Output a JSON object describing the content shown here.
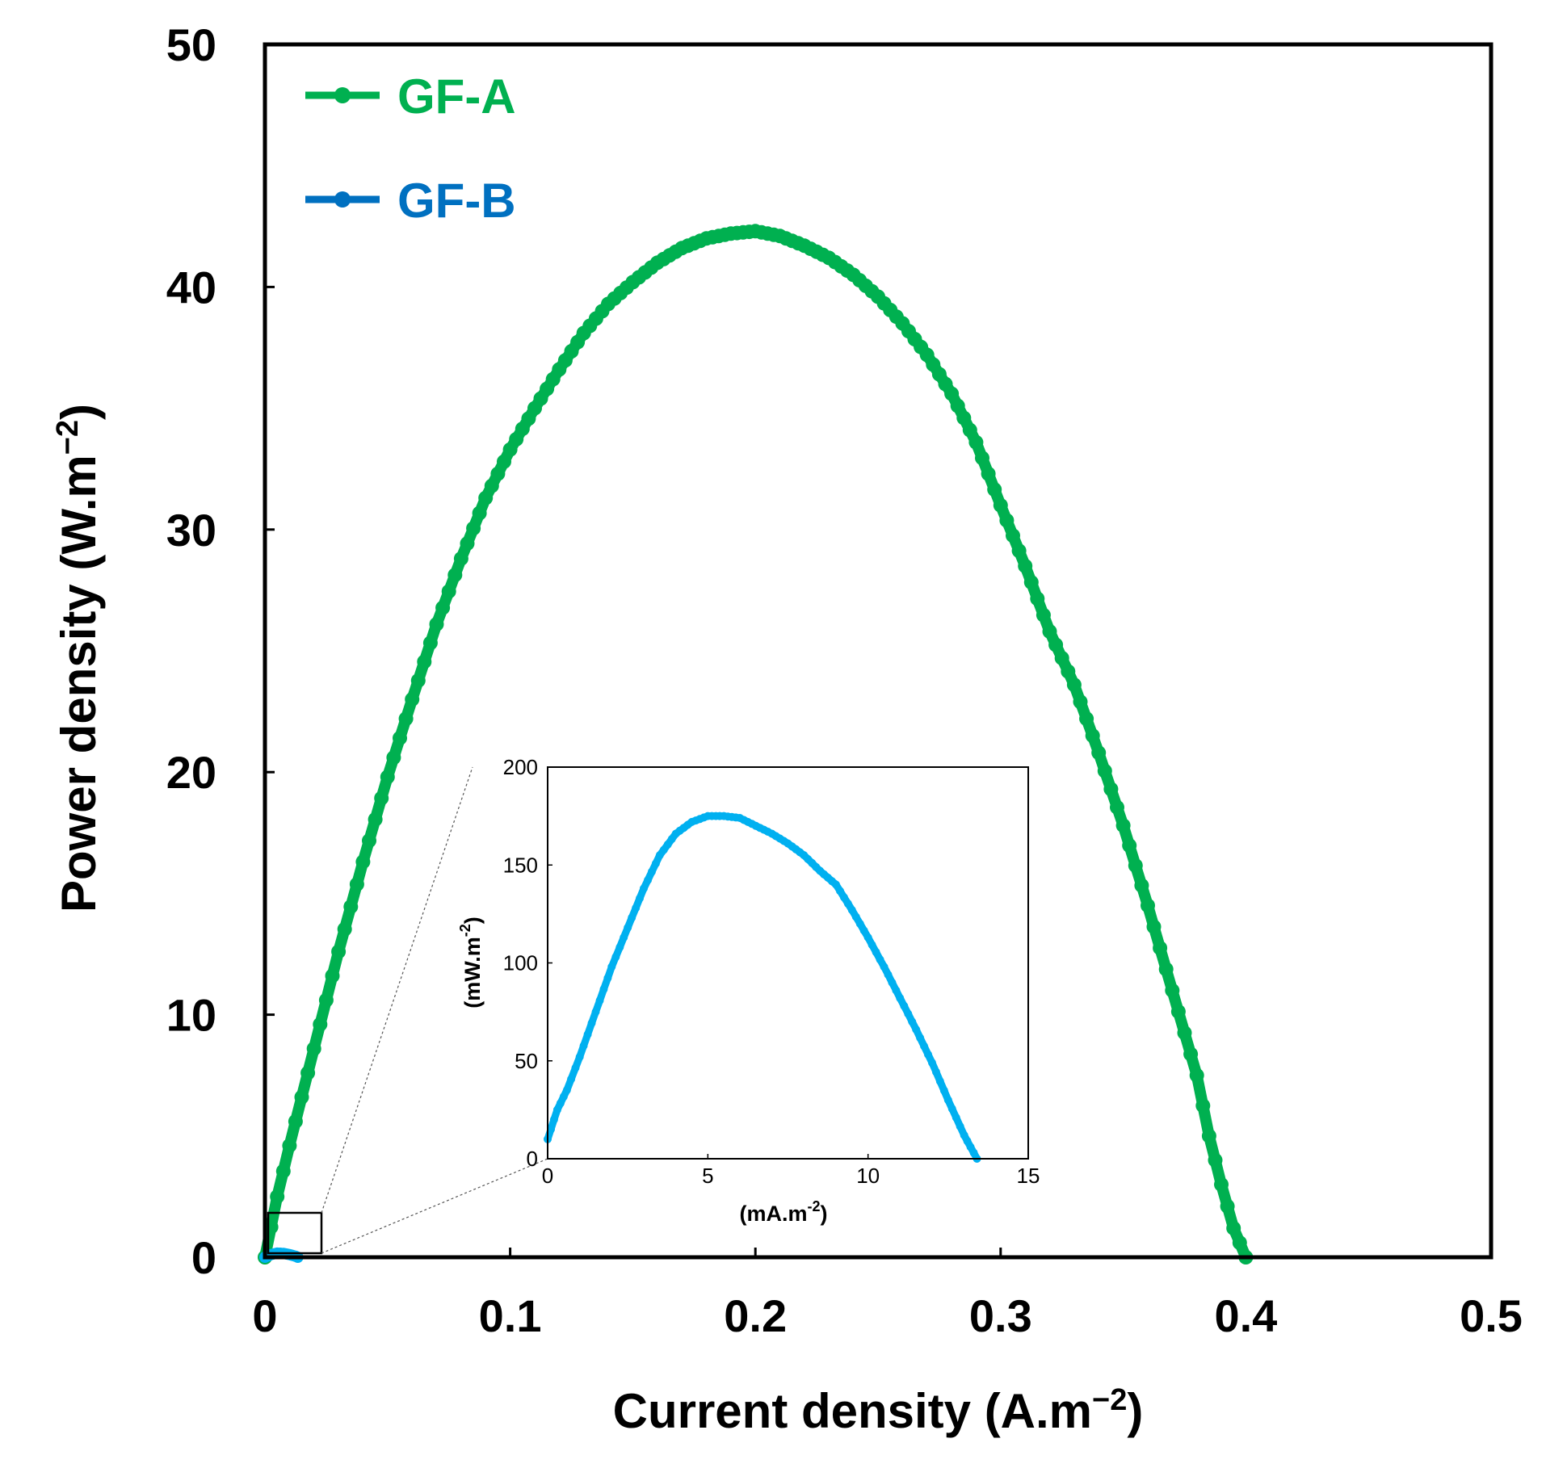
{
  "chart_data": [
    {
      "type": "scatter",
      "role": "main",
      "xlabel": "Current density (A.m",
      "xlabel_sup": "−2",
      "xlabel_end": ")",
      "ylabel": "Power density (W.m",
      "ylabel_sup": "−2",
      "ylabel_end": ")",
      "xlim": [
        0,
        0.5
      ],
      "ylim": [
        0,
        50
      ],
      "xticks": [
        0,
        0.1,
        0.2,
        0.3,
        0.4,
        0.5
      ],
      "xtick_labels": [
        "0",
        "0.1",
        "0.2",
        "0.3",
        "0.4",
        "0.5"
      ],
      "yticks": [
        0,
        10,
        20,
        30,
        40,
        50
      ],
      "ytick_labels": [
        "0",
        "10",
        "20",
        "30",
        "40",
        "50"
      ],
      "legend_position": "top-left",
      "series": [
        {
          "name": "GF-A",
          "color": "#00b050",
          "x": [
            0,
            0.005,
            0.01,
            0.02,
            0.03,
            0.04,
            0.05,
            0.06,
            0.07,
            0.08,
            0.09,
            0.1,
            0.11,
            0.12,
            0.13,
            0.14,
            0.15,
            0.16,
            0.17,
            0.18,
            0.19,
            0.2,
            0.21,
            0.22,
            0.23,
            0.24,
            0.25,
            0.26,
            0.27,
            0.28,
            0.29,
            0.3,
            0.31,
            0.32,
            0.33,
            0.34,
            0.35,
            0.36,
            0.37,
            0.38,
            0.385,
            0.39,
            0.395,
            0.4
          ],
          "y": [
            0,
            2.5,
            4.6,
            8.6,
            12.6,
            16.3,
            19.8,
            23.0,
            26.1,
            28.8,
            31.3,
            33.3,
            35.0,
            36.6,
            38.1,
            39.3,
            40.2,
            41.0,
            41.6,
            42.0,
            42.2,
            42.3,
            42.1,
            41.7,
            41.2,
            40.5,
            39.6,
            38.5,
            37.2,
            35.6,
            33.6,
            31.0,
            28.5,
            25.8,
            23.6,
            20.8,
            17.8,
            14.5,
            11.0,
            7.5,
            5.0,
            3.0,
            1.2,
            0
          ]
        },
        {
          "name": "GF-B",
          "color": "#0070c0",
          "x": [
            0,
            0.0025,
            0.005,
            0.0075,
            0.01,
            0.0125,
            0.0134
          ],
          "y": [
            0,
            0.11,
            0.17,
            0.16,
            0.11,
            0.04,
            0
          ]
        }
      ]
    },
    {
      "type": "line",
      "role": "inset",
      "series_name": "GF-B",
      "color": "#00b0f0",
      "xlabel": "(mA.m",
      "xlabel_sup": "-2",
      "xlabel_end": ")",
      "ylabel": "(mW.m",
      "ylabel_sup": "-2",
      "ylabel_end": ")",
      "xlim": [
        0,
        15
      ],
      "ylim": [
        0,
        200
      ],
      "xticks": [
        0,
        5,
        10,
        15
      ],
      "xtick_labels": [
        "0",
        "5",
        "10",
        "15"
      ],
      "yticks": [
        0,
        50,
        100,
        150,
        200
      ],
      "ytick_labels": [
        "0",
        "50",
        "100",
        "150",
        "200"
      ],
      "x": [
        0,
        0.3,
        0.6,
        1.0,
        1.5,
        2.0,
        2.5,
        3.0,
        3.5,
        4.0,
        4.5,
        5.0,
        5.5,
        6.0,
        6.5,
        7.0,
        7.5,
        8.0,
        8.5,
        9.0,
        9.5,
        10.0,
        10.5,
        11.0,
        11.5,
        12.0,
        12.5,
        13.0,
        13.3,
        13.4
      ],
      "y": [
        10,
        25,
        35,
        52,
        75,
        98,
        118,
        138,
        155,
        166,
        172,
        175,
        175,
        174,
        170,
        166,
        161,
        155,
        147,
        140,
        127,
        113,
        98,
        82,
        66,
        49,
        30,
        12,
        3,
        0
      ]
    }
  ]
}
